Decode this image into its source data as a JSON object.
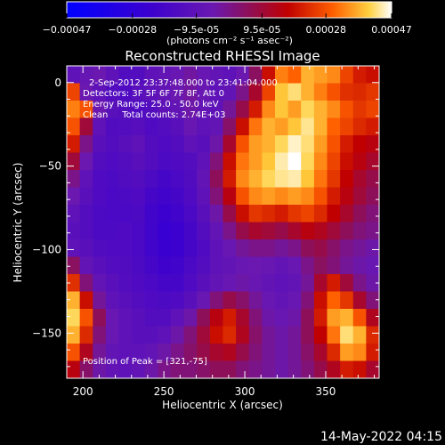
{
  "chart_data": {
    "type": "heatmap",
    "title": "Reconstructed RHESSI Image",
    "xlabel": "Heliocentric X (arcsec)",
    "ylabel": "Heliocentric Y (arcsec)",
    "xlim": [
      190,
      383
    ],
    "ylim": [
      -177,
      10
    ],
    "x_ticks": [
      200,
      250,
      300,
      350
    ],
    "y_ticks": [
      0,
      -50,
      -100,
      -150
    ],
    "annotations": [
      "2-Sep-2012 23:37:48.000 to 23:41:04.000",
      "Detectors: 3F 5F 6F 7F 8F, Att 0",
      "Energy Range: 25.0 - 50.0 keV",
      "Clean     Total counts: 2.74E+03",
      "Position of Peak = [321,-75]"
    ],
    "colorbar": {
      "tick_labels": [
        "-0.00047",
        "-0.00028",
        "-9.5e-05",
        "9.5e-05",
        "0.00028",
        "0.00047"
      ],
      "units": "(photons cm⁻² s⁻¹ asec⁻²)",
      "range": [
        -0.00047,
        0.00047
      ],
      "colormap": "blue-purple-red-yellow-white"
    },
    "peak": {
      "x": 321,
      "y": -75
    },
    "intensity_grid": [
      [
        0.4,
        0.43,
        0.45,
        0.4,
        0.35,
        0.36,
        0.4,
        0.42,
        0.44,
        0.47,
        0.44,
        0.42,
        0.4,
        0.45,
        0.55,
        0.7,
        0.85,
        0.82,
        0.9,
        0.88,
        0.86,
        0.78,
        0.72,
        0.7
      ],
      [
        0.78,
        0.45,
        0.4,
        0.36,
        0.34,
        0.38,
        0.4,
        0.42,
        0.45,
        0.47,
        0.44,
        0.4,
        0.42,
        0.5,
        0.62,
        0.78,
        0.92,
        0.95,
        0.9,
        0.85,
        0.8,
        0.75,
        0.74,
        0.76
      ],
      [
        0.85,
        0.8,
        0.45,
        0.38,
        0.36,
        0.34,
        0.36,
        0.4,
        0.42,
        0.46,
        0.42,
        0.4,
        0.48,
        0.58,
        0.72,
        0.86,
        0.92,
        0.88,
        0.94,
        0.9,
        0.86,
        0.8,
        0.76,
        0.78
      ],
      [
        0.8,
        0.6,
        0.4,
        0.35,
        0.36,
        0.37,
        0.34,
        0.36,
        0.38,
        0.44,
        0.4,
        0.42,
        0.54,
        0.7,
        0.84,
        0.9,
        0.88,
        0.92,
        0.96,
        0.9,
        0.82,
        0.78,
        0.74,
        0.72
      ],
      [
        0.72,
        0.5,
        0.38,
        0.36,
        0.38,
        0.4,
        0.36,
        0.34,
        0.36,
        0.4,
        0.38,
        0.46,
        0.62,
        0.8,
        0.88,
        0.9,
        0.94,
        0.98,
        0.95,
        0.88,
        0.8,
        0.72,
        0.68,
        0.66
      ],
      [
        0.6,
        0.45,
        0.36,
        0.34,
        0.36,
        0.38,
        0.36,
        0.33,
        0.34,
        0.36,
        0.4,
        0.52,
        0.7,
        0.84,
        0.88,
        0.92,
        0.97,
        1.0,
        0.94,
        0.86,
        0.78,
        0.7,
        0.66,
        0.62
      ],
      [
        0.5,
        0.4,
        0.34,
        0.33,
        0.35,
        0.36,
        0.33,
        0.3,
        0.32,
        0.35,
        0.42,
        0.56,
        0.72,
        0.86,
        0.9,
        0.94,
        0.96,
        0.97,
        0.92,
        0.84,
        0.76,
        0.68,
        0.62,
        0.58
      ],
      [
        0.45,
        0.38,
        0.34,
        0.32,
        0.33,
        0.34,
        0.3,
        0.28,
        0.3,
        0.34,
        0.4,
        0.52,
        0.66,
        0.8,
        0.86,
        0.88,
        0.86,
        0.88,
        0.86,
        0.8,
        0.72,
        0.66,
        0.6,
        0.56
      ],
      [
        0.4,
        0.36,
        0.33,
        0.32,
        0.32,
        0.33,
        0.28,
        0.26,
        0.28,
        0.32,
        0.38,
        0.46,
        0.58,
        0.7,
        0.76,
        0.74,
        0.72,
        0.76,
        0.78,
        0.74,
        0.68,
        0.62,
        0.56,
        0.52
      ],
      [
        0.38,
        0.36,
        0.33,
        0.33,
        0.34,
        0.32,
        0.28,
        0.24,
        0.26,
        0.3,
        0.36,
        0.42,
        0.5,
        0.58,
        0.62,
        0.6,
        0.58,
        0.62,
        0.66,
        0.64,
        0.6,
        0.56,
        0.52,
        0.5
      ],
      [
        0.4,
        0.38,
        0.35,
        0.34,
        0.34,
        0.32,
        0.28,
        0.25,
        0.26,
        0.3,
        0.34,
        0.4,
        0.44,
        0.48,
        0.5,
        0.5,
        0.48,
        0.5,
        0.56,
        0.58,
        0.54,
        0.5,
        0.48,
        0.46
      ],
      [
        0.55,
        0.42,
        0.38,
        0.36,
        0.35,
        0.33,
        0.3,
        0.27,
        0.28,
        0.32,
        0.36,
        0.4,
        0.42,
        0.44,
        0.45,
        0.44,
        0.42,
        0.44,
        0.5,
        0.55,
        0.52,
        0.48,
        0.46,
        0.44
      ],
      [
        0.75,
        0.52,
        0.42,
        0.38,
        0.36,
        0.34,
        0.32,
        0.3,
        0.3,
        0.34,
        0.38,
        0.42,
        0.44,
        0.46,
        0.44,
        0.42,
        0.4,
        0.42,
        0.48,
        0.62,
        0.72,
        0.6,
        0.5,
        0.46
      ],
      [
        0.9,
        0.7,
        0.48,
        0.4,
        0.38,
        0.36,
        0.34,
        0.33,
        0.34,
        0.38,
        0.44,
        0.52,
        0.58,
        0.54,
        0.48,
        0.44,
        0.42,
        0.44,
        0.52,
        0.7,
        0.82,
        0.76,
        0.62,
        0.52
      ],
      [
        0.94,
        0.8,
        0.56,
        0.44,
        0.4,
        0.38,
        0.36,
        0.36,
        0.4,
        0.46,
        0.56,
        0.66,
        0.72,
        0.62,
        0.52,
        0.46,
        0.44,
        0.46,
        0.56,
        0.72,
        0.88,
        0.9,
        0.8,
        0.64
      ],
      [
        0.9,
        0.74,
        0.52,
        0.44,
        0.4,
        0.38,
        0.38,
        0.4,
        0.46,
        0.52,
        0.6,
        0.7,
        0.74,
        0.64,
        0.54,
        0.48,
        0.46,
        0.48,
        0.56,
        0.68,
        0.84,
        0.95,
        0.9,
        0.74
      ],
      [
        0.8,
        0.64,
        0.48,
        0.42,
        0.4,
        0.4,
        0.42,
        0.46,
        0.5,
        0.54,
        0.58,
        0.62,
        0.64,
        0.58,
        0.52,
        0.48,
        0.46,
        0.48,
        0.54,
        0.62,
        0.74,
        0.88,
        0.86,
        0.72
      ],
      [
        0.66,
        0.54,
        0.46,
        0.42,
        0.4,
        0.42,
        0.46,
        0.5,
        0.52,
        0.52,
        0.54,
        0.56,
        0.56,
        0.52,
        0.5,
        0.48,
        0.46,
        0.48,
        0.52,
        0.58,
        0.64,
        0.72,
        0.7,
        0.62
      ]
    ]
  }
}
